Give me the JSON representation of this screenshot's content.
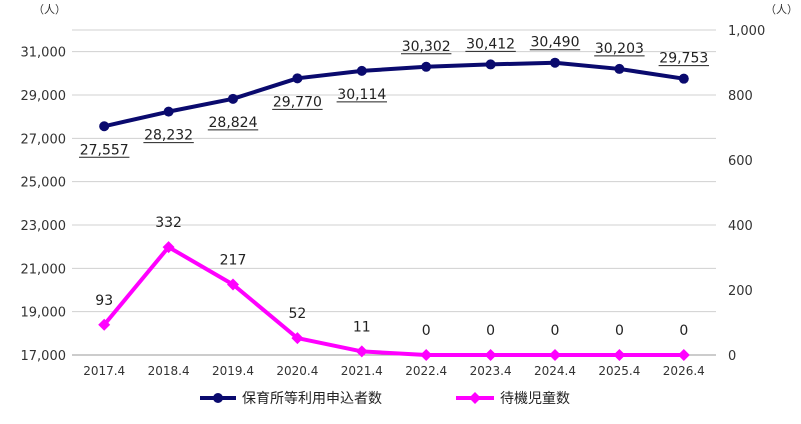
{
  "chart_data": {
    "type": "line",
    "categories": [
      "2017.4",
      "2018.4",
      "2019.4",
      "2020.4",
      "2021.4",
      "2022.4",
      "2023.4",
      "2024.4",
      "2025.4",
      "2026.4"
    ],
    "y_left": {
      "unit": "（人）",
      "ylim": [
        17000,
        32000
      ],
      "ticks": [
        "17,000",
        "19,000",
        "21,000",
        "23,000",
        "25,000",
        "27,000",
        "29,000",
        "31,000"
      ],
      "tick_values": [
        17000,
        19000,
        21000,
        23000,
        25000,
        27000,
        29000,
        31000
      ]
    },
    "y_right": {
      "unit": "（人）",
      "ylim": [
        0,
        1000
      ],
      "ticks": [
        "0",
        "200",
        "400",
        "600",
        "800",
        "1,000"
      ],
      "tick_values": [
        0,
        200,
        400,
        600,
        800,
        1000
      ]
    },
    "series": [
      {
        "name": "保育所等利用申込者数",
        "axis": "left",
        "color": "#0a0a6e",
        "marker": "circle",
        "values": [
          27557,
          28232,
          28824,
          29770,
          30114,
          30302,
          30412,
          30490,
          30203,
          29753
        ],
        "labels": [
          "27,557",
          "28,232",
          "28,824",
          "29,770",
          "30,114",
          "30,302",
          "30,412",
          "30,490",
          "30,203",
          "29,753"
        ]
      },
      {
        "name": "待機児童数",
        "axis": "right",
        "color": "#ff00ff",
        "marker": "diamond",
        "values": [
          93,
          332,
          217,
          52,
          11,
          0,
          0,
          0,
          0,
          0
        ],
        "labels": [
          "93",
          "332",
          "217",
          "52",
          "11",
          "0",
          "0",
          "0",
          "0",
          "0"
        ]
      }
    ],
    "grid": "horizontal",
    "legend": "bottom"
  }
}
